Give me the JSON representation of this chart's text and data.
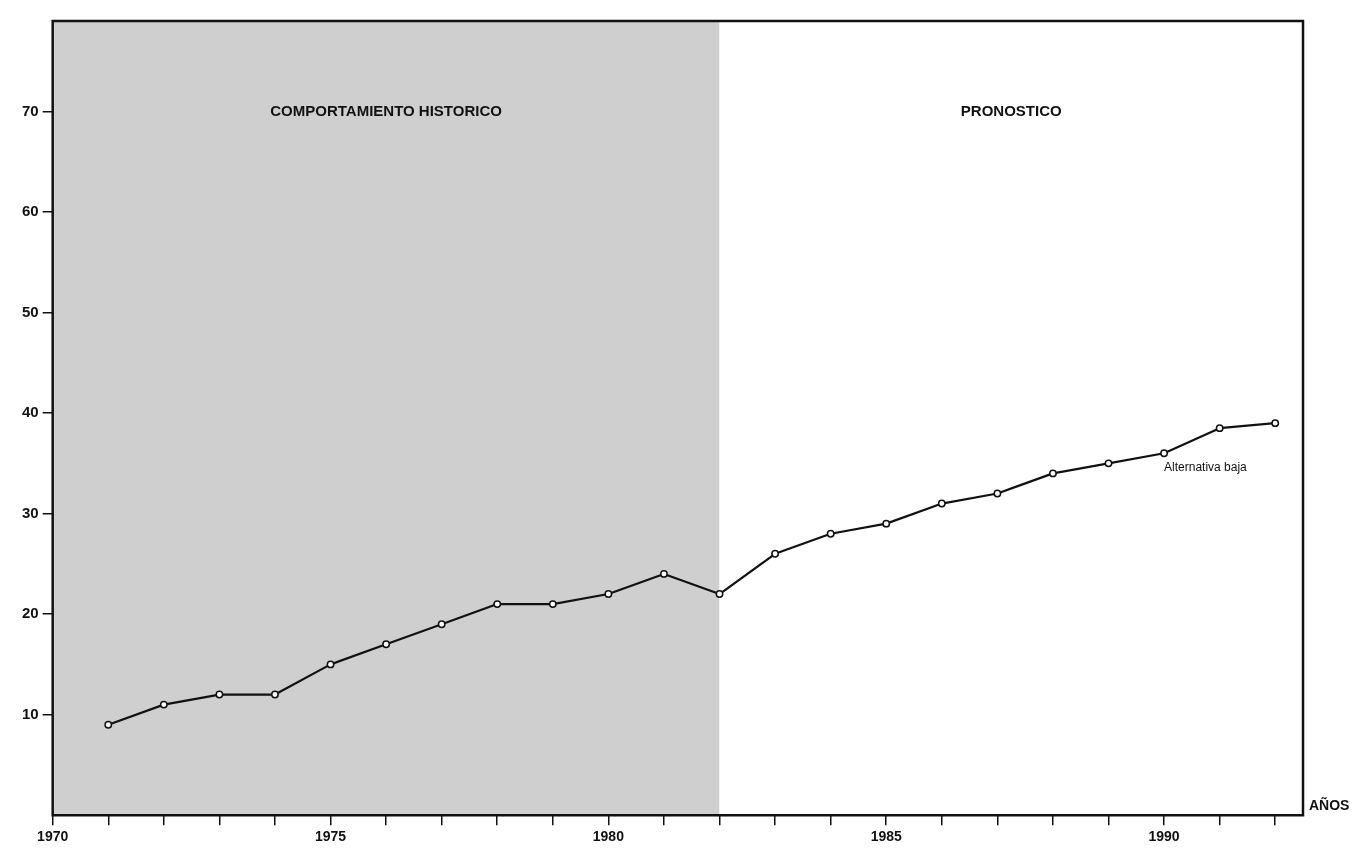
{
  "chart_data": {
    "type": "line",
    "xlabel": "AÑOS",
    "x": [
      1971,
      1972,
      1973,
      1974,
      1975,
      1976,
      1977,
      1978,
      1979,
      1980,
      1981,
      1982,
      1983,
      1984,
      1985,
      1986,
      1987,
      1988,
      1989,
      1990,
      1991,
      1992
    ],
    "series": [
      {
        "name": "Alternativa baja",
        "color": "#111111",
        "values": [
          9,
          11,
          12,
          12,
          15,
          17,
          19,
          21,
          21,
          22,
          24,
          22,
          26,
          28,
          29,
          31,
          32,
          34,
          35,
          36,
          38.5,
          39
        ]
      }
    ],
    "xlim": [
      1970,
      1992.5
    ],
    "xticks": [
      1970,
      {
        "value": 1971,
        "label": null
      },
      {
        "value": 1972,
        "label": null
      },
      {
        "value": 1973,
        "label": null
      },
      {
        "value": 1974,
        "label": null
      },
      1975,
      {
        "value": 1976,
        "label": null
      },
      {
        "value": 1977,
        "label": null
      },
      {
        "value": 1978,
        "label": null
      },
      {
        "value": 1979,
        "label": null
      },
      1980,
      {
        "value": 1981,
        "label": null
      },
      {
        "value": 1982,
        "label": null
      },
      {
        "value": 1983,
        "label": null
      },
      {
        "value": 1984,
        "label": null
      },
      1985,
      {
        "value": 1986,
        "label": null
      },
      {
        "value": 1987,
        "label": null
      },
      {
        "value": 1988,
        "label": null
      },
      {
        "value": 1989,
        "label": null
      },
      1990,
      {
        "value": 1991,
        "label": null
      },
      {
        "value": 1992,
        "label": null
      }
    ],
    "ylim": [
      0,
      79
    ],
    "yticks": [
      10,
      20,
      30,
      40,
      50,
      60,
      70
    ],
    "bands": [
      {
        "axis": "x",
        "from": 1970,
        "to": 1982,
        "label": "COMPORTAMIENTO HISTORICO",
        "color": "#cfcfcf"
      },
      {
        "axis": "x",
        "from": 1982,
        "to": 1992.5,
        "label": "PRONOSTICO",
        "color": "#ffffff"
      }
    ],
    "grid": false,
    "legend": false,
    "marker": "circle",
    "line_style": "solid"
  }
}
